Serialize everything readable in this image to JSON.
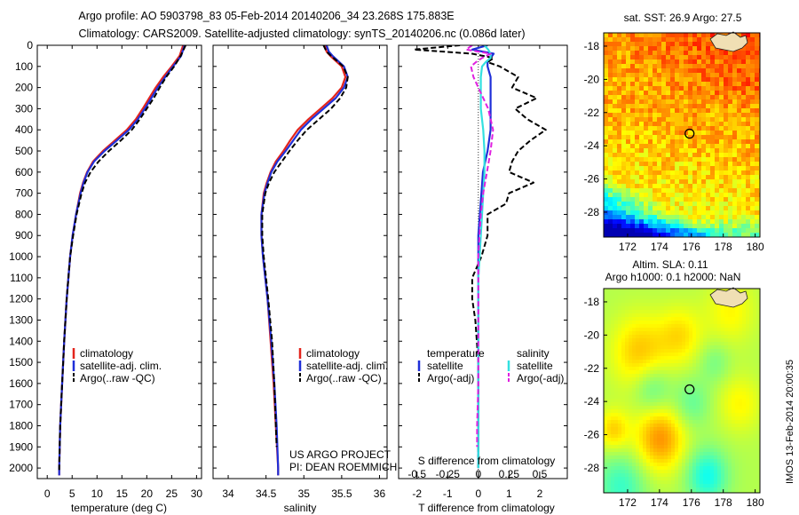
{
  "header": {
    "line1": "Argo profile: AO 5903798_83 05-Feb-2014 20140206_34 23.268S 175.883E",
    "line2": "Climatology: CARS2009. Satellite-adjusted climatology: synTS_20140206.nc (0.086d later)"
  },
  "credit": {
    "line1": "US ARGO PROJECT",
    "line2": "PI: DEAN ROEMMICH"
  },
  "side_stamp": "IMOS 13-Feb-2014 20:00:35",
  "colors": {
    "climatology": "#e3241c",
    "satellite": "#1f2fd8",
    "argo": "#000000",
    "sal_satellite": "#33e0e0",
    "sal_argo": "#e020e0"
  },
  "chart_data": [
    {
      "type": "line",
      "xlabel": "temperature (deg C)",
      "xlim": [
        -2,
        31
      ],
      "ylim": [
        2050,
        0
      ],
      "xticks": [
        0,
        5,
        10,
        15,
        20,
        25,
        30
      ],
      "yticks": [
        0,
        100,
        200,
        300,
        400,
        500,
        600,
        700,
        800,
        900,
        1000,
        1100,
        1200,
        1300,
        1400,
        1500,
        1600,
        1700,
        1800,
        1900,
        2000
      ],
      "legend": [
        "climatology",
        "satellite-adj. clim.",
        "Argo(..raw -QC)"
      ],
      "series": [
        {
          "name": "climatology",
          "style": "solid",
          "color": "#e3241c",
          "depth": [
            0,
            50,
            100,
            150,
            200,
            250,
            300,
            350,
            400,
            450,
            500,
            550,
            600,
            650,
            700,
            800,
            900,
            1000,
            1200,
            1400,
            1600,
            1800,
            2000,
            2035
          ],
          "values": [
            27.3,
            26.6,
            25.0,
            23.3,
            21.8,
            20.5,
            19.2,
            17.8,
            16.0,
            13.6,
            11.2,
            9.2,
            8.0,
            7.2,
            6.6,
            5.8,
            5.1,
            4.6,
            3.9,
            3.4,
            3.0,
            2.6,
            2.4,
            2.4
          ]
        },
        {
          "name": "satellite-adj. clim.",
          "style": "solid",
          "color": "#1f2fd8",
          "depth": [
            0,
            50,
            100,
            150,
            200,
            250,
            300,
            350,
            400,
            450,
            500,
            550,
            600,
            650,
            700,
            800,
            900,
            1000,
            1200,
            1400,
            1600,
            1800,
            2000,
            2035
          ],
          "values": [
            27.6,
            26.9,
            25.3,
            23.7,
            22.2,
            20.9,
            19.6,
            18.2,
            16.4,
            14.0,
            11.5,
            9.4,
            8.1,
            7.3,
            6.7,
            5.8,
            5.1,
            4.6,
            3.9,
            3.4,
            3.0,
            2.6,
            2.4,
            2.4
          ]
        },
        {
          "name": "Argo(..raw -QC)",
          "style": "dashed",
          "color": "#000000",
          "depth": [
            0,
            50,
            100,
            150,
            200,
            250,
            300,
            350,
            400,
            450,
            500,
            550,
            600,
            650,
            700,
            800,
            900,
            1000,
            1200,
            1400,
            1600,
            1800,
            2000,
            2020
          ],
          "values": [
            27.8,
            26.8,
            25.5,
            23.9,
            22.6,
            21.4,
            20.0,
            18.6,
            17.0,
            14.8,
            12.4,
            10.3,
            8.7,
            7.6,
            6.9,
            5.9,
            5.2,
            4.6,
            3.9,
            3.4,
            3.0,
            2.6,
            2.4,
            2.4
          ]
        }
      ]
    },
    {
      "type": "line",
      "xlabel": "salinity",
      "xlim": [
        33.8,
        36.1
      ],
      "ylim": [
        2050,
        0
      ],
      "xticks": [
        34,
        34.5,
        35,
        35.5,
        36
      ],
      "legend": [
        "climatology",
        "satellite-adj. clim.",
        "Argo(..raw -QC)"
      ],
      "series": [
        {
          "name": "climatology",
          "style": "solid",
          "color": "#e3241c",
          "depth": [
            0,
            30,
            50,
            100,
            150,
            200,
            250,
            300,
            350,
            400,
            450,
            500,
            550,
            600,
            650,
            700,
            800,
            900,
            1000,
            1200,
            1400,
            1600,
            1800,
            2000,
            2035
          ],
          "values": [
            35.28,
            35.3,
            35.35,
            35.5,
            35.55,
            35.5,
            35.38,
            35.22,
            35.06,
            34.92,
            34.82,
            34.73,
            34.63,
            34.56,
            34.51,
            34.47,
            34.44,
            34.44,
            34.46,
            34.52,
            34.56,
            34.6,
            34.63,
            34.66,
            34.66
          ]
        },
        {
          "name": "satellite-adj. clim.",
          "style": "solid",
          "color": "#1f2fd8",
          "depth": [
            0,
            30,
            50,
            100,
            150,
            200,
            250,
            300,
            350,
            400,
            450,
            500,
            550,
            600,
            650,
            700,
            800,
            900,
            1000,
            1200,
            1400,
            1600,
            1800,
            2000,
            2035
          ],
          "values": [
            35.3,
            35.33,
            35.38,
            35.53,
            35.58,
            35.53,
            35.42,
            35.26,
            35.1,
            34.96,
            34.86,
            34.76,
            34.65,
            34.57,
            34.52,
            34.48,
            34.44,
            34.44,
            34.46,
            34.52,
            34.57,
            34.61,
            34.64,
            34.66,
            34.66
          ]
        },
        {
          "name": "Argo(..raw -QC)",
          "style": "dashed",
          "color": "#000000",
          "depth": [
            0,
            30,
            50,
            100,
            150,
            200,
            250,
            300,
            350,
            400,
            450,
            500,
            550,
            600,
            650,
            700,
            800,
            900,
            1000,
            1200,
            1400,
            1600,
            1800,
            1900
          ],
          "values": [
            35.26,
            35.3,
            35.36,
            35.52,
            35.58,
            35.56,
            35.48,
            35.36,
            35.2,
            35.04,
            34.92,
            34.81,
            34.71,
            34.61,
            34.54,
            34.49,
            34.45,
            34.45,
            34.47,
            34.53,
            34.58,
            34.61,
            34.63,
            34.64
          ]
        }
      ]
    },
    {
      "type": "line",
      "xlabel": "T difference from climatology",
      "secondary_xlabel": "S difference from climatology",
      "xlim": [
        -2.6,
        2.9
      ],
      "secondary_xlim": [
        -0.65,
        0.725
      ],
      "ylim": [
        2050,
        0
      ],
      "xticks": [
        -2,
        -1,
        0,
        1,
        2
      ],
      "secondary_xticks": [
        -0.5,
        -0.25,
        0,
        0.25,
        0.5
      ],
      "legend_temperature": {
        "title": "temperature",
        "items": [
          "satellite",
          "Argo(-adj)"
        ]
      },
      "legend_salinity": {
        "title": "salinity",
        "items": [
          "satellite",
          "Argo(-adj)"
        ]
      },
      "series": [
        {
          "name": "satellite",
          "group": "temperature",
          "style": "solid",
          "color": "#1f2fd8",
          "depth": [
            0,
            20,
            40,
            60,
            80,
            100,
            150,
            200,
            300,
            400,
            500,
            600,
            700,
            800,
            900,
            1000,
            1200,
            1400,
            1600,
            1800,
            2000
          ],
          "values": [
            0.3,
            -0.2,
            0.5,
            0.4,
            0.3,
            0.3,
            0.4,
            0.4,
            0.4,
            0.4,
            0.3,
            0.15,
            0.1,
            0.05,
            0.0,
            0.0,
            0.0,
            0.0,
            0.0,
            0.0,
            0.0
          ]
        },
        {
          "name": "Argo(-adj)",
          "group": "temperature",
          "style": "dashed",
          "color": "#000000",
          "depth": [
            0,
            20,
            40,
            60,
            80,
            100,
            150,
            200,
            250,
            300,
            350,
            400,
            450,
            500,
            550,
            600,
            650,
            700,
            750,
            800,
            900,
            1000,
            1100,
            1200,
            1300,
            1400,
            1500,
            1600,
            1700,
            1800,
            1900,
            2000
          ],
          "values": [
            -0.6,
            -2.1,
            -0.2,
            0.5,
            0.3,
            0.7,
            1.3,
            1.1,
            1.9,
            1.2,
            1.6,
            2.2,
            1.7,
            1.3,
            1.1,
            1.0,
            1.8,
            1.0,
            0.9,
            0.3,
            0.3,
            0.1,
            -0.2,
            -0.2,
            -0.1,
            -0.05,
            0.0,
            0.0,
            0.0,
            0.0,
            0.0,
            0.0
          ]
        },
        {
          "name": "satellite",
          "group": "salinity",
          "style": "solid",
          "color": "#33e0e0",
          "depth": [
            0,
            20,
            40,
            60,
            80,
            100,
            150,
            200,
            300,
            400,
            500,
            600,
            700,
            800,
            900,
            1000,
            1100,
            1200,
            1400,
            1600,
            1800,
            2000
          ],
          "values": [
            0.05,
            0.08,
            0.1,
            0.1,
            0.06,
            0.03,
            0.02,
            0.02,
            0.02,
            0.04,
            0.05,
            0.05,
            0.04,
            0.03,
            0.02,
            0.01,
            0.0,
            0.0,
            0.0,
            0.0,
            0.0,
            0.0
          ]
        },
        {
          "name": "Argo(-adj)",
          "group": "salinity",
          "style": "dashed",
          "color": "#e020e0",
          "depth": [
            0,
            20,
            40,
            60,
            80,
            100,
            150,
            200,
            300,
            400,
            500,
            600,
            700,
            800,
            900,
            1000,
            1200,
            1400,
            1600,
            1800,
            1900
          ],
          "values": [
            -0.05,
            -0.1,
            0.1,
            0.03,
            -0.02,
            -0.06,
            -0.04,
            0.0,
            0.08,
            0.12,
            0.1,
            0.07,
            0.04,
            0.02,
            0.01,
            0.0,
            0.0,
            0.0,
            0.0,
            -0.01,
            -0.01
          ]
        }
      ]
    },
    {
      "type": "heatmap",
      "title": "sat. SST: 26.9 Argo: 27.5",
      "xlim": [
        170.5,
        180.3
      ],
      "ylim": [
        -29.5,
        -17.2
      ],
      "xticks": [
        172,
        174,
        176,
        178,
        180
      ],
      "yticks": [
        -18,
        -20,
        -22,
        -24,
        -26,
        -28
      ],
      "marker": {
        "lon": 175.883,
        "lat": -23.268
      },
      "colormap": "jet"
    },
    {
      "type": "heatmap",
      "title_line1": "Altim. SLA: 0.11",
      "title_line2": "Argo h1000: 0.1 h2000: NaN",
      "xlim": [
        170.5,
        180.3
      ],
      "ylim": [
        -29.5,
        -17.2
      ],
      "xticks": [
        172,
        174,
        176,
        178,
        180
      ],
      "yticks": [
        -18,
        -20,
        -22,
        -24,
        -26,
        -28
      ],
      "marker": {
        "lon": 175.883,
        "lat": -23.268
      },
      "colormap": "jet"
    }
  ]
}
